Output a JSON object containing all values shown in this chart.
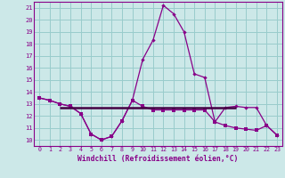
{
  "xlabel": "Windchill (Refroidissement éolien,°C)",
  "background_color": "#cce8e8",
  "line_color": "#880088",
  "grid_color": "#99cccc",
  "hours": [
    0,
    1,
    2,
    3,
    4,
    5,
    6,
    7,
    8,
    9,
    10,
    11,
    12,
    13,
    14,
    15,
    16,
    17,
    18,
    19,
    20,
    21,
    22,
    23
  ],
  "windchill_line": [
    13.5,
    13.3,
    13.0,
    12.8,
    12.2,
    10.5,
    10.0,
    10.3,
    11.6,
    13.3,
    16.7,
    18.3,
    21.2,
    20.5,
    19.0,
    15.5,
    15.2,
    11.5,
    12.7,
    12.8,
    12.7,
    12.7,
    11.2,
    10.4
  ],
  "temp_line": [
    13.5,
    13.3,
    13.0,
    12.8,
    12.2,
    10.5,
    10.0,
    10.3,
    11.6,
    13.3,
    12.8,
    12.5,
    12.5,
    12.5,
    12.5,
    12.5,
    12.5,
    11.5,
    11.2,
    11.0,
    10.9,
    10.8,
    11.2,
    10.4
  ],
  "hline_y": 12.7,
  "hline_x_start": 2,
  "hline_x_end": 19,
  "ylim": [
    9.5,
    21.5
  ],
  "xlim": [
    -0.5,
    23.5
  ],
  "yticks": [
    10,
    11,
    12,
    13,
    14,
    15,
    16,
    17,
    18,
    19,
    20,
    21
  ],
  "xticks": [
    0,
    1,
    2,
    3,
    4,
    5,
    6,
    7,
    8,
    9,
    10,
    11,
    12,
    13,
    14,
    15,
    16,
    17,
    18,
    19,
    20,
    21,
    22,
    23
  ]
}
